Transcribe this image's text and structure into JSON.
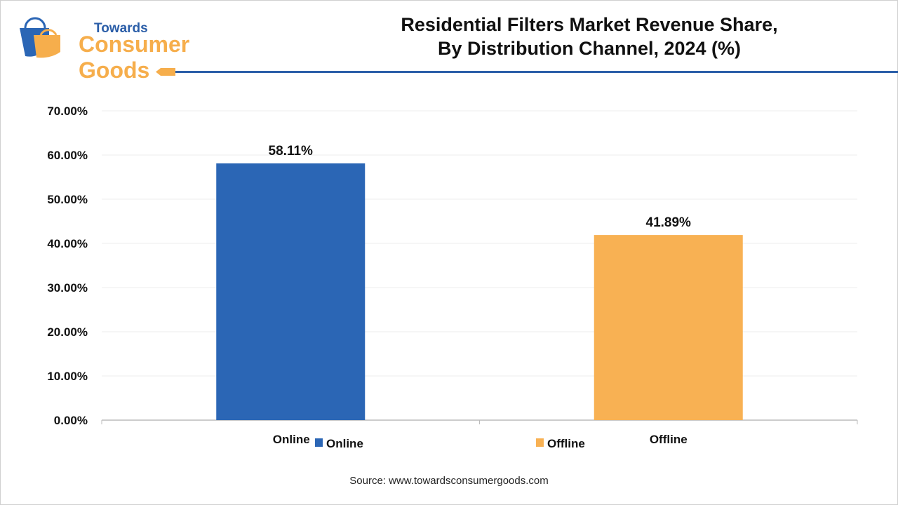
{
  "logo": {
    "line1": "Towards",
    "line2": "Consumer Goods"
  },
  "title": [
    "Residential Filters Market Revenue Share,",
    "By Distribution Channel, 2024 (%)"
  ],
  "source": "Source: www.towardsconsumergoods.com",
  "chart_data": {
    "type": "bar",
    "title": "Residential Filters Market Revenue Share, By Distribution Channel, 2024 (%)",
    "categories": [
      "Online",
      "Offline"
    ],
    "values": [
      58.11,
      41.89
    ],
    "data_labels": [
      "58.11%",
      "41.89%"
    ],
    "colors": [
      "#2b66b5",
      "#f8b153"
    ],
    "ylim": [
      0,
      70
    ],
    "yticks": [
      "0.00%",
      "10.00%",
      "20.00%",
      "30.00%",
      "40.00%",
      "50.00%",
      "60.00%",
      "70.00%"
    ],
    "legend": [
      {
        "label": "Online",
        "color": "#2b66b5"
      },
      {
        "label": "Offline",
        "color": "#f8b153"
      }
    ],
    "legend_position": "bottom",
    "grid": true
  }
}
